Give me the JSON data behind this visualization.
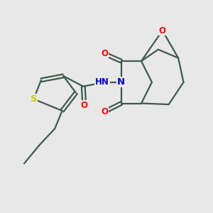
{
  "background_color": "#e8e8e8",
  "bond_color": "#3d5a4c",
  "bond_width": 1.6,
  "atom_colors": {
    "O": "#ff0000",
    "N": "#0000cc",
    "S": "#cccc00",
    "C": "#3d5a4c",
    "H": "#555555"
  },
  "font_size": 8.5,
  "figsize": [
    3.0,
    3.0
  ],
  "dpi": 100
}
